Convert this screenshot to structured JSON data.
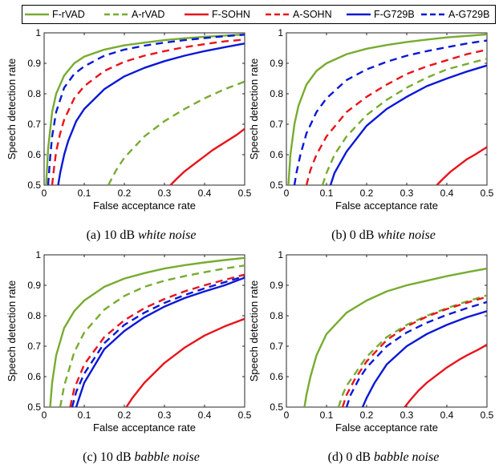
{
  "legend": [
    {
      "name": "F-rVAD",
      "color": "#77ac30",
      "dash": false
    },
    {
      "name": "A-rVAD",
      "color": "#77ac30",
      "dash": true
    },
    {
      "name": "F-SOHN",
      "color": "#e8141b",
      "dash": false
    },
    {
      "name": "A-SOHN",
      "color": "#e8141b",
      "dash": true
    },
    {
      "name": "F-G729B",
      "color": "#0a18d6",
      "dash": false
    },
    {
      "name": "A-G729B",
      "color": "#0a18d6",
      "dash": true
    }
  ],
  "chart_data": [
    {
      "type": "line",
      "caption": {
        "prefix": "(a) 10 dB ",
        "italic": "white noise"
      },
      "xlabel": "False acceptance rate",
      "ylabel": "Speech detection rate",
      "xlim": [
        0,
        0.5
      ],
      "ylim": [
        0.5,
        1
      ],
      "xticks": [
        "0",
        "0.1",
        "0.2",
        "0.3",
        "0.4",
        "0.5"
      ],
      "yticks": [
        "0.5",
        "0.6",
        "0.7",
        "0.8",
        "0.9",
        "1"
      ],
      "series": [
        {
          "name": "F-rVAD",
          "x": [
            0.005,
            0.01,
            0.02,
            0.03,
            0.05,
            0.075,
            0.1,
            0.15,
            0.2,
            0.25,
            0.3,
            0.35,
            0.4,
            0.45,
            0.5
          ],
          "y": [
            0.5,
            0.62,
            0.74,
            0.8,
            0.86,
            0.9,
            0.922,
            0.945,
            0.959,
            0.968,
            0.976,
            0.982,
            0.987,
            0.991,
            0.995
          ]
        },
        {
          "name": "A-rVAD",
          "x": [
            0.16,
            0.18,
            0.2,
            0.25,
            0.3,
            0.35,
            0.4,
            0.45,
            0.5
          ],
          "y": [
            0.5,
            0.55,
            0.59,
            0.66,
            0.71,
            0.75,
            0.785,
            0.815,
            0.84
          ]
        },
        {
          "name": "F-SOHN",
          "x": [
            0.315,
            0.33,
            0.35,
            0.38,
            0.4,
            0.42,
            0.45,
            0.48,
            0.5
          ],
          "y": [
            0.5,
            0.52,
            0.545,
            0.575,
            0.595,
            0.615,
            0.64,
            0.665,
            0.685
          ]
        },
        {
          "name": "A-SOHN",
          "x": [
            0.02,
            0.025,
            0.03,
            0.04,
            0.05,
            0.075,
            0.1,
            0.15,
            0.2,
            0.25,
            0.3,
            0.35,
            0.4,
            0.45,
            0.5
          ],
          "y": [
            0.5,
            0.56,
            0.61,
            0.67,
            0.715,
            0.785,
            0.825,
            0.875,
            0.905,
            0.925,
            0.94,
            0.953,
            0.963,
            0.972,
            0.978
          ]
        },
        {
          "name": "F-G729B",
          "x": [
            0.035,
            0.04,
            0.05,
            0.06,
            0.08,
            0.1,
            0.15,
            0.2,
            0.25,
            0.3,
            0.35,
            0.4,
            0.45,
            0.5
          ],
          "y": [
            0.5,
            0.54,
            0.6,
            0.645,
            0.71,
            0.75,
            0.815,
            0.857,
            0.885,
            0.907,
            0.925,
            0.94,
            0.953,
            0.965
          ]
        },
        {
          "name": "A-G729B",
          "x": [
            0.01,
            0.015,
            0.02,
            0.03,
            0.05,
            0.075,
            0.1,
            0.15,
            0.2,
            0.25,
            0.3,
            0.35,
            0.4,
            0.45,
            0.5
          ],
          "y": [
            0.5,
            0.59,
            0.66,
            0.74,
            0.82,
            0.865,
            0.89,
            0.925,
            0.945,
            0.958,
            0.968,
            0.976,
            0.983,
            0.989,
            0.994
          ]
        }
      ]
    },
    {
      "type": "line",
      "caption": {
        "prefix": "(b) 0 dB ",
        "italic": "white noise"
      },
      "xlabel": "False acceptance rate",
      "ylabel": "Speech detection rate",
      "xlim": [
        0,
        0.5
      ],
      "ylim": [
        0.5,
        1
      ],
      "xticks": [
        "0",
        "0.1",
        "0.2",
        "0.3",
        "0.4",
        "0.5"
      ],
      "yticks": [
        "0.5",
        "0.6",
        "0.7",
        "0.8",
        "0.9",
        "1"
      ],
      "series": [
        {
          "name": "F-rVAD",
          "x": [
            0.005,
            0.01,
            0.02,
            0.03,
            0.05,
            0.075,
            0.1,
            0.15,
            0.2,
            0.25,
            0.3,
            0.35,
            0.4,
            0.45,
            0.5
          ],
          "y": [
            0.5,
            0.6,
            0.7,
            0.76,
            0.83,
            0.875,
            0.9,
            0.93,
            0.948,
            0.96,
            0.97,
            0.978,
            0.985,
            0.99,
            0.995
          ]
        },
        {
          "name": "A-rVAD",
          "x": [
            0.09,
            0.1,
            0.12,
            0.15,
            0.2,
            0.25,
            0.3,
            0.35,
            0.4,
            0.45,
            0.5
          ],
          "y": [
            0.5,
            0.54,
            0.6,
            0.66,
            0.73,
            0.78,
            0.82,
            0.853,
            0.88,
            0.898,
            0.915
          ]
        },
        {
          "name": "F-SOHN",
          "x": [
            0.375,
            0.39,
            0.41,
            0.43,
            0.45,
            0.47,
            0.5
          ],
          "y": [
            0.5,
            0.52,
            0.545,
            0.565,
            0.585,
            0.6,
            0.625
          ]
        },
        {
          "name": "A-SOHN",
          "x": [
            0.05,
            0.06,
            0.075,
            0.1,
            0.15,
            0.2,
            0.25,
            0.3,
            0.35,
            0.4,
            0.45,
            0.5
          ],
          "y": [
            0.5,
            0.55,
            0.6,
            0.66,
            0.74,
            0.79,
            0.83,
            0.865,
            0.89,
            0.91,
            0.93,
            0.945
          ]
        },
        {
          "name": "F-G729B",
          "x": [
            0.11,
            0.12,
            0.15,
            0.2,
            0.25,
            0.3,
            0.35,
            0.4,
            0.45,
            0.5
          ],
          "y": [
            0.5,
            0.54,
            0.61,
            0.695,
            0.75,
            0.79,
            0.825,
            0.85,
            0.873,
            0.893
          ]
        },
        {
          "name": "A-G729B",
          "x": [
            0.02,
            0.025,
            0.035,
            0.05,
            0.075,
            0.1,
            0.15,
            0.2,
            0.25,
            0.3,
            0.35,
            0.4,
            0.45,
            0.5
          ],
          "y": [
            0.5,
            0.54,
            0.6,
            0.67,
            0.74,
            0.785,
            0.845,
            0.88,
            0.905,
            0.925,
            0.94,
            0.953,
            0.965,
            0.975
          ]
        }
      ]
    },
    {
      "type": "line",
      "caption": {
        "prefix": "(c) 10 dB ",
        "italic": "babble noise"
      },
      "xlabel": "False acceptance rate",
      "ylabel": "Speech detection rate",
      "xlim": [
        0,
        0.5
      ],
      "ylim": [
        0.5,
        1
      ],
      "xticks": [
        "0",
        "0.1",
        "0.2",
        "0.3",
        "0.4",
        "0.5"
      ],
      "yticks": [
        "0.5",
        "0.6",
        "0.7",
        "0.8",
        "0.9",
        "1"
      ],
      "series": [
        {
          "name": "F-rVAD",
          "x": [
            0.015,
            0.02,
            0.03,
            0.05,
            0.075,
            0.1,
            0.15,
            0.2,
            0.25,
            0.3,
            0.35,
            0.4,
            0.45,
            0.5
          ],
          "y": [
            0.5,
            0.58,
            0.67,
            0.76,
            0.815,
            0.85,
            0.895,
            0.922,
            0.94,
            0.955,
            0.966,
            0.975,
            0.983,
            0.99
          ]
        },
        {
          "name": "A-rVAD",
          "x": [
            0.04,
            0.05,
            0.075,
            0.1,
            0.15,
            0.2,
            0.25,
            0.3,
            0.35,
            0.4,
            0.45,
            0.5
          ],
          "y": [
            0.5,
            0.57,
            0.68,
            0.745,
            0.82,
            0.865,
            0.895,
            0.915,
            0.93,
            0.943,
            0.955,
            0.965
          ]
        },
        {
          "name": "F-SOHN",
          "x": [
            0.205,
            0.22,
            0.25,
            0.3,
            0.35,
            0.4,
            0.45,
            0.5
          ],
          "y": [
            0.5,
            0.53,
            0.58,
            0.645,
            0.695,
            0.735,
            0.765,
            0.79
          ]
        },
        {
          "name": "A-SOHN",
          "x": [
            0.065,
            0.075,
            0.1,
            0.15,
            0.2,
            0.25,
            0.3,
            0.35,
            0.4,
            0.45,
            0.5
          ],
          "y": [
            0.5,
            0.56,
            0.64,
            0.73,
            0.785,
            0.825,
            0.855,
            0.88,
            0.9,
            0.918,
            0.935
          ]
        },
        {
          "name": "F-G729B",
          "x": [
            0.08,
            0.09,
            0.1,
            0.15,
            0.2,
            0.25,
            0.3,
            0.35,
            0.4,
            0.45,
            0.5
          ],
          "y": [
            0.5,
            0.54,
            0.58,
            0.69,
            0.75,
            0.795,
            0.83,
            0.858,
            0.88,
            0.9,
            0.925
          ]
        },
        {
          "name": "A-G729B",
          "x": [
            0.07,
            0.08,
            0.1,
            0.15,
            0.2,
            0.25,
            0.3,
            0.35,
            0.4,
            0.45,
            0.5
          ],
          "y": [
            0.5,
            0.55,
            0.61,
            0.71,
            0.77,
            0.81,
            0.842,
            0.868,
            0.89,
            0.91,
            0.93
          ]
        }
      ]
    },
    {
      "type": "line",
      "caption": {
        "prefix": "(d) 0 dB ",
        "italic": "babble noise"
      },
      "xlabel": "False acceptance rate",
      "ylabel": "Speech detection rate",
      "xlim": [
        0,
        0.5
      ],
      "ylim": [
        0.5,
        1
      ],
      "xticks": [
        "0",
        "0.1",
        "0.2",
        "0.3",
        "0.4",
        "0.5"
      ],
      "yticks": [
        "0.5",
        "0.6",
        "0.7",
        "0.8",
        "0.9",
        "1"
      ],
      "series": [
        {
          "name": "F-rVAD",
          "x": [
            0.045,
            0.05,
            0.06,
            0.075,
            0.1,
            0.15,
            0.2,
            0.25,
            0.3,
            0.35,
            0.4,
            0.45,
            0.5
          ],
          "y": [
            0.5,
            0.54,
            0.6,
            0.67,
            0.74,
            0.81,
            0.85,
            0.88,
            0.9,
            0.915,
            0.93,
            0.943,
            0.955
          ]
        },
        {
          "name": "A-rVAD",
          "x": [
            0.13,
            0.14,
            0.15,
            0.2,
            0.25,
            0.3,
            0.35,
            0.4,
            0.45,
            0.5
          ],
          "y": [
            0.5,
            0.54,
            0.57,
            0.665,
            0.73,
            0.77,
            0.8,
            0.825,
            0.847,
            0.867
          ]
        },
        {
          "name": "F-SOHN",
          "x": [
            0.295,
            0.31,
            0.33,
            0.35,
            0.38,
            0.4,
            0.43,
            0.45,
            0.48,
            0.5
          ],
          "y": [
            0.5,
            0.525,
            0.555,
            0.58,
            0.61,
            0.63,
            0.655,
            0.67,
            0.69,
            0.705
          ]
        },
        {
          "name": "A-SOHN",
          "x": [
            0.14,
            0.15,
            0.17,
            0.2,
            0.25,
            0.3,
            0.35,
            0.4,
            0.45,
            0.5
          ],
          "y": [
            0.5,
            0.54,
            0.59,
            0.65,
            0.72,
            0.765,
            0.797,
            0.822,
            0.843,
            0.862
          ]
        },
        {
          "name": "F-G729B",
          "x": [
            0.19,
            0.2,
            0.22,
            0.25,
            0.3,
            0.35,
            0.4,
            0.45,
            0.5
          ],
          "y": [
            0.5,
            0.53,
            0.58,
            0.64,
            0.7,
            0.74,
            0.77,
            0.795,
            0.815
          ]
        },
        {
          "name": "A-G729B",
          "x": [
            0.15,
            0.16,
            0.18,
            0.2,
            0.25,
            0.3,
            0.35,
            0.4,
            0.45,
            0.5
          ],
          "y": [
            0.5,
            0.54,
            0.59,
            0.63,
            0.7,
            0.745,
            0.777,
            0.803,
            0.825,
            0.845
          ]
        }
      ]
    }
  ]
}
